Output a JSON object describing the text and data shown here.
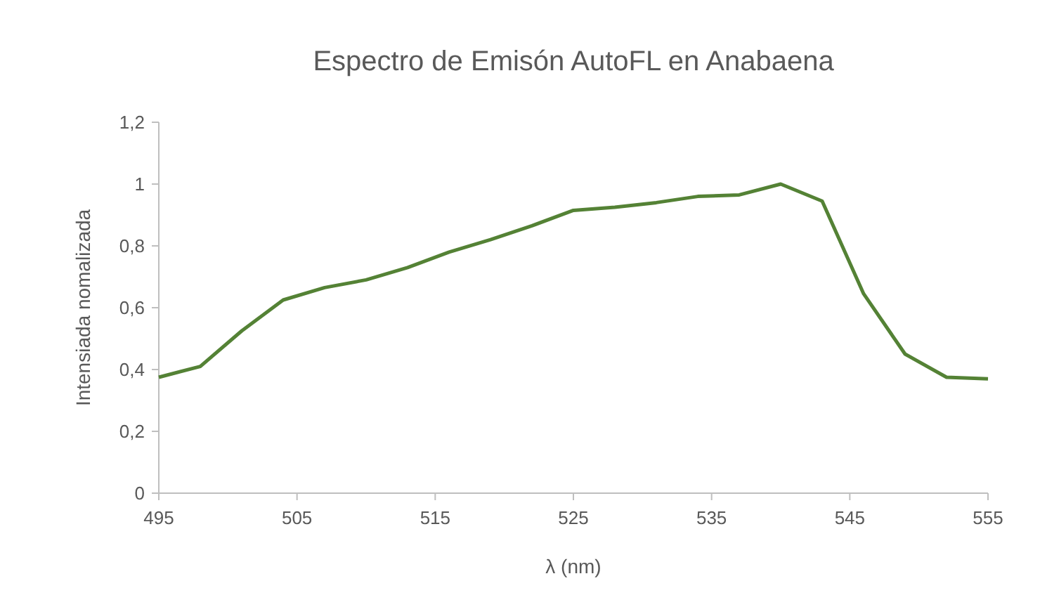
{
  "chart_data": {
    "type": "line",
    "title": "Espectro de Emisón AutoFL en Anabaena",
    "xlabel": "λ (nm)",
    "ylabel": "Intensiada nomalizada",
    "x": [
      495,
      498,
      501,
      504,
      507,
      510,
      513,
      516,
      519,
      522,
      525,
      528,
      531,
      534,
      537,
      540,
      543,
      546,
      549,
      552,
      555
    ],
    "series": [
      {
        "color": "#548235",
        "values": [
          0.375,
          0.41,
          0.525,
          0.625,
          0.665,
          0.69,
          0.73,
          0.78,
          0.82,
          0.865,
          0.915,
          0.925,
          0.94,
          0.96,
          0.965,
          1.0,
          0.945,
          0.645,
          0.45,
          0.375,
          0.37
        ]
      }
    ],
    "xlim": [
      495,
      555
    ],
    "xticks": [
      495,
      505,
      515,
      525,
      535,
      545,
      555
    ],
    "ylim": [
      0,
      1.2
    ],
    "yticks": [
      0,
      {
        "value": 0.2,
        "label": "0,2"
      },
      {
        "value": 0.4,
        "label": "0,4"
      },
      {
        "value": 0.6,
        "label": "0,6"
      },
      {
        "value": 0.8,
        "label": "0,8"
      },
      1,
      {
        "value": 1.2,
        "label": "1,2"
      }
    ],
    "marker": "none",
    "line_style": "solid"
  }
}
